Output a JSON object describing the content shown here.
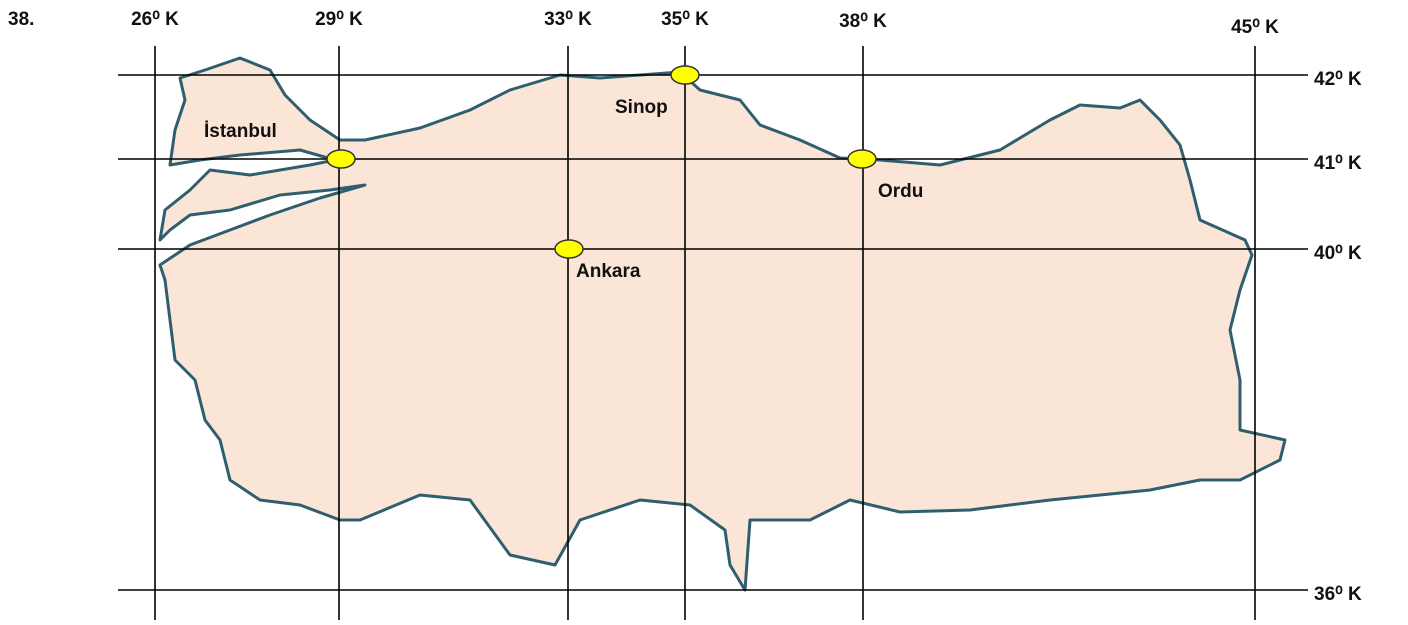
{
  "question_number": "38.",
  "longitudes": [
    "26⁰ K",
    "29⁰ K",
    "33⁰ K",
    "35⁰ K",
    "38⁰ K",
    "45⁰ K"
  ],
  "latitudes": [
    "42⁰ K",
    "41⁰ K",
    "40⁰ K",
    "36⁰ K"
  ],
  "cities": [
    "İstanbul",
    "Sinop",
    "Ordu",
    "Ankara"
  ]
}
